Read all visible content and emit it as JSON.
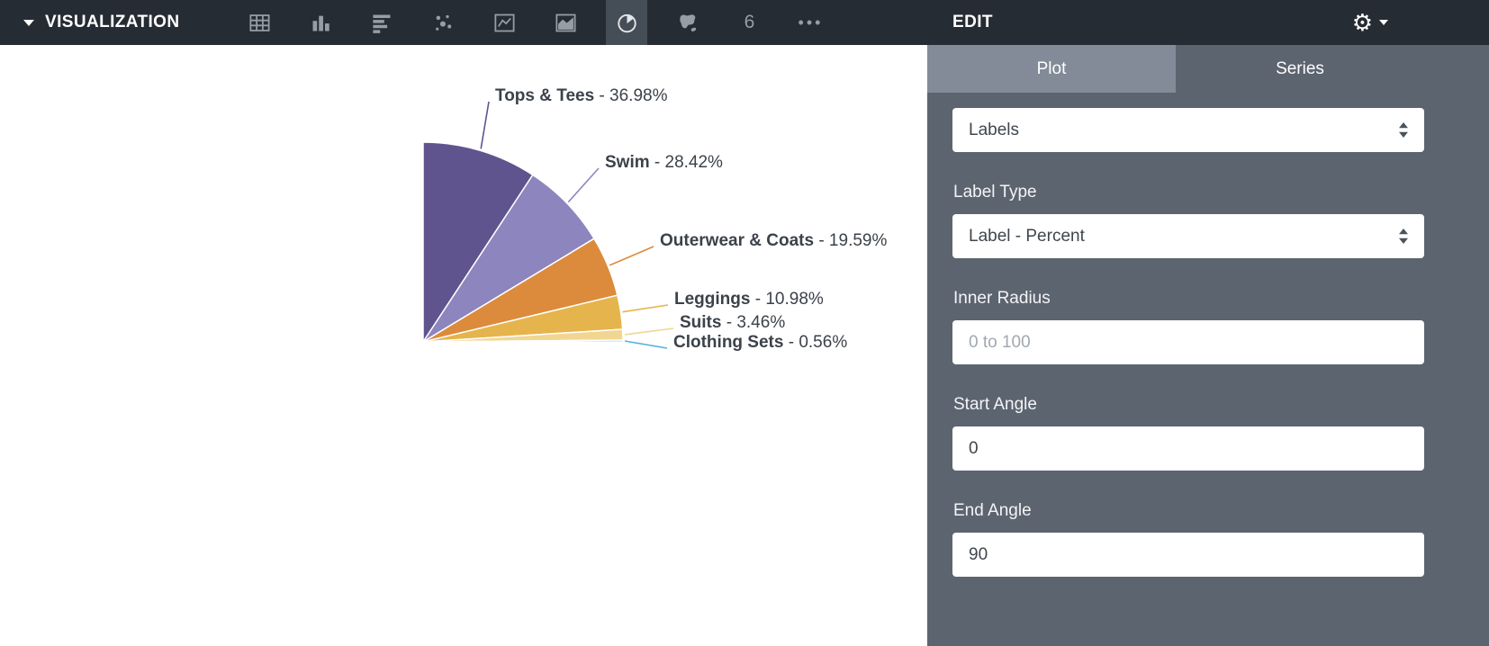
{
  "topbar": {
    "title": "VISUALIZATION",
    "icons": [
      {
        "name": "table"
      },
      {
        "name": "column-chart"
      },
      {
        "name": "bar-chart"
      },
      {
        "name": "scatter"
      },
      {
        "name": "line-chart"
      },
      {
        "name": "area-chart"
      },
      {
        "name": "pie-chart",
        "selected": true
      },
      {
        "name": "map"
      },
      {
        "name": "single-value",
        "glyph": "6"
      },
      {
        "name": "more-options",
        "glyph": "•••"
      }
    ]
  },
  "edit_panel": {
    "title": "EDIT",
    "gear_glyph": "⚙",
    "tabs": [
      {
        "label": "Plot",
        "active": true
      },
      {
        "label": "Series",
        "active": false
      }
    ],
    "fields": {
      "section_dropdown": {
        "value": "Labels"
      },
      "label_type": {
        "label": "Label Type",
        "value": "Label - Percent"
      },
      "inner_radius": {
        "label": "Inner Radius",
        "placeholder": "0 to 100",
        "value": ""
      },
      "start_angle": {
        "label": "Start Angle",
        "value": "0"
      },
      "end_angle": {
        "label": "End Angle",
        "value": "90"
      }
    }
  },
  "chart_data": {
    "type": "pie",
    "title": "",
    "categories": [
      "Tops & Tees",
      "Swim",
      "Outerwear & Coats",
      "Leggings",
      "Suits",
      "Clothing Sets"
    ],
    "values": [
      36.98,
      28.42,
      19.59,
      10.98,
      3.46,
      0.56
    ],
    "unit": "%",
    "colors": [
      "#60548f",
      "#8d85bd",
      "#dc8b3c",
      "#e6b44d",
      "#f1d692",
      "#54b2e5"
    ],
    "start_angle": 0,
    "end_angle": 90,
    "inner_radius": 0,
    "label_format": "{category} - {value}%",
    "legend": "none"
  }
}
